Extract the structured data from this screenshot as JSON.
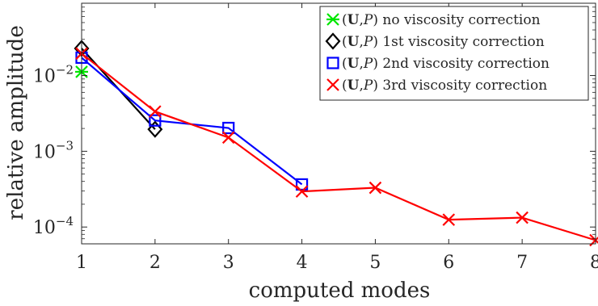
{
  "chart_data": {
    "type": "line",
    "xlabel": "computed modes",
    "ylabel": "relative amplitude",
    "xlim": [
      1,
      8
    ],
    "ylim": [
      6e-05,
      0.09
    ],
    "y_scale": "log",
    "grid": false,
    "legend_position": "top-right",
    "x_ticks": [
      {
        "value": 1,
        "label": "1"
      },
      {
        "value": 2,
        "label": "2"
      },
      {
        "value": 3,
        "label": "3"
      },
      {
        "value": 4,
        "label": "4"
      },
      {
        "value": 5,
        "label": "5"
      },
      {
        "value": 6,
        "label": "6"
      },
      {
        "value": 7,
        "label": "7"
      },
      {
        "value": 8,
        "label": "8"
      }
    ],
    "y_ticks": [
      {
        "value": 0.0001,
        "base": "10",
        "exp": "−4"
      },
      {
        "value": 0.001,
        "base": "10",
        "exp": "−3"
      },
      {
        "value": 0.01,
        "base": "10",
        "exp": "−2"
      }
    ],
    "series": [
      {
        "name": "(U,P) no viscosity correction",
        "color": "#00e600",
        "marker": "asterisk",
        "x": [
          1
        ],
        "y": [
          0.0112
        ]
      },
      {
        "name": "(U,P) 1st viscosity correction",
        "color": "#000000",
        "marker": "diamond",
        "x": [
          1,
          2
        ],
        "y": [
          0.0228,
          0.00195
        ]
      },
      {
        "name": "(U,P) 2nd viscosity correction",
        "color": "#0000ff",
        "marker": "square",
        "x": [
          1,
          2,
          3,
          4
        ],
        "y": [
          0.0172,
          0.00255,
          0.00203,
          0.000365
        ]
      },
      {
        "name": "(U,P) 3rd viscosity correction",
        "color": "#ff0000",
        "marker": "x",
        "x": [
          1,
          2,
          3,
          4,
          5,
          6,
          7,
          8
        ],
        "y": [
          0.0195,
          0.00335,
          0.00152,
          0.000295,
          0.00033,
          0.000125,
          0.000133,
          6.7e-05
        ]
      }
    ],
    "legend": [
      {
        "bold": "U",
        "italic": "P",
        "rest": " no viscosity correction"
      },
      {
        "bold": "U",
        "italic": "P",
        "rest": " 1st viscosity correction"
      },
      {
        "bold": "U",
        "italic": "P",
        "rest": " 2nd viscosity correction"
      },
      {
        "bold": "U",
        "italic": "P",
        "rest": " 3rd viscosity correction"
      }
    ]
  }
}
